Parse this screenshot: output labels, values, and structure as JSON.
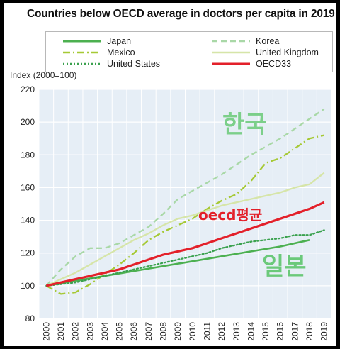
{
  "chart_data": {
    "type": "line",
    "title": "Countries below OECD average in doctors per capita in 2019",
    "ylabel": "Index (2000=100)",
    "xlabel": "",
    "ylim": [
      80,
      220
    ],
    "yticks": [
      80,
      100,
      120,
      140,
      160,
      180,
      200,
      220
    ],
    "x": [
      "2000",
      "2001",
      "2002",
      "2003",
      "2004",
      "2005",
      "2006",
      "2007",
      "2008",
      "2009",
      "2010",
      "2011",
      "2012",
      "2013",
      "2014",
      "2015",
      "2016",
      "2017",
      "2018",
      "2019"
    ],
    "grid": true,
    "legend_position": "top",
    "series": [
      {
        "name": "Japan",
        "color": "#4cb050",
        "style": "solid",
        "values": [
          100,
          null,
          103,
          null,
          106,
          null,
          109,
          null,
          112,
          null,
          115,
          null,
          118,
          null,
          121,
          null,
          124,
          null,
          128,
          null
        ]
      },
      {
        "name": "Korea",
        "color": "#a9d8a7",
        "style": "dashed",
        "values": [
          100,
          110,
          118,
          123,
          123,
          126,
          131,
          136,
          144,
          153,
          158,
          163,
          168,
          174,
          180,
          185,
          190,
          196,
          202,
          208
        ]
      },
      {
        "name": "Mexico",
        "color": "#a6c935",
        "style": "dashdot",
        "values": [
          100,
          95,
          96,
          101,
          107,
          113,
          120,
          128,
          133,
          137,
          141,
          147,
          152,
          156,
          164,
          175,
          178,
          184,
          190,
          192
        ]
      },
      {
        "name": "United Kingdom",
        "color": "#d6e5a8",
        "style": "solid",
        "values": [
          100,
          104,
          108,
          113,
          118,
          123,
          128,
          132,
          137,
          141,
          143,
          146,
          149,
          151,
          153,
          155,
          157,
          160,
          162,
          169
        ]
      },
      {
        "name": "United States",
        "color": "#3aa14e",
        "style": "dotted",
        "values": [
          100,
          101,
          102,
          104,
          106,
          108,
          110,
          112,
          114,
          116,
          118,
          120,
          123,
          125,
          127,
          128,
          129,
          131,
          131,
          134
        ]
      },
      {
        "name": "OECD33",
        "color": "#e3202a",
        "style": "solid",
        "values": [
          100,
          102,
          104,
          106,
          108,
          110,
          113,
          116,
          119,
          121,
          123,
          126,
          129,
          132,
          135,
          138,
          141,
          144,
          147,
          151
        ]
      }
    ],
    "annotations": [
      {
        "text": "한국",
        "color": "#7ccf8a"
      },
      {
        "text": "oecd평균",
        "color": "#e3202a"
      },
      {
        "text": "일본",
        "color": "#6bc97a"
      }
    ]
  }
}
